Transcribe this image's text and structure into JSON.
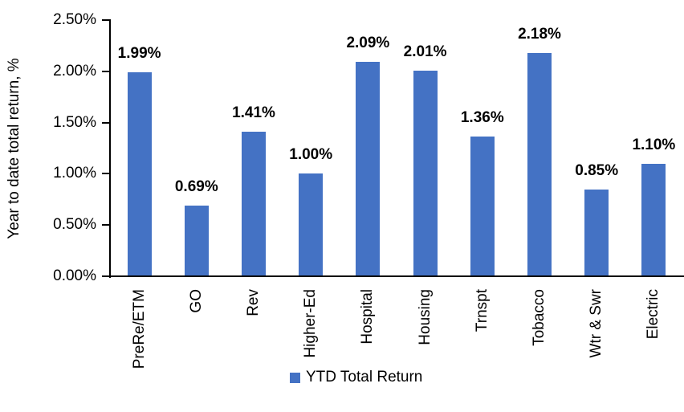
{
  "chart_data": {
    "type": "bar",
    "title": "",
    "xlabel": "",
    "ylabel": "Year to date total return, %",
    "categories": [
      "PreRe/ETM",
      "GO",
      "Rev",
      "Higher-Ed",
      "Hospital",
      "Housing",
      "Trnspt",
      "Tobacco",
      "Wtr & Swr",
      "Electric"
    ],
    "values": [
      1.99,
      0.69,
      1.41,
      1.0,
      2.09,
      2.01,
      1.36,
      2.18,
      0.85,
      1.1
    ],
    "value_labels": [
      "1.99%",
      "0.69%",
      "1.41%",
      "1.00%",
      "2.09%",
      "2.01%",
      "1.36%",
      "2.18%",
      "0.85%",
      "1.10%"
    ],
    "ylim": [
      0,
      2.5
    ],
    "y_ticks": [
      0,
      0.5,
      1.0,
      1.5,
      2.0,
      2.5
    ],
    "y_tick_labels": [
      "0.00%",
      "0.50%",
      "1.00%",
      "1.50%",
      "2.00%",
      "2.50%"
    ],
    "grid": false,
    "bar_color": "#4472C4",
    "axis_color": "#000000",
    "text_color": "#000000",
    "legend_position": "bottom",
    "legend": [
      {
        "label": "YTD Total Return",
        "color": "#4472C4"
      }
    ]
  }
}
